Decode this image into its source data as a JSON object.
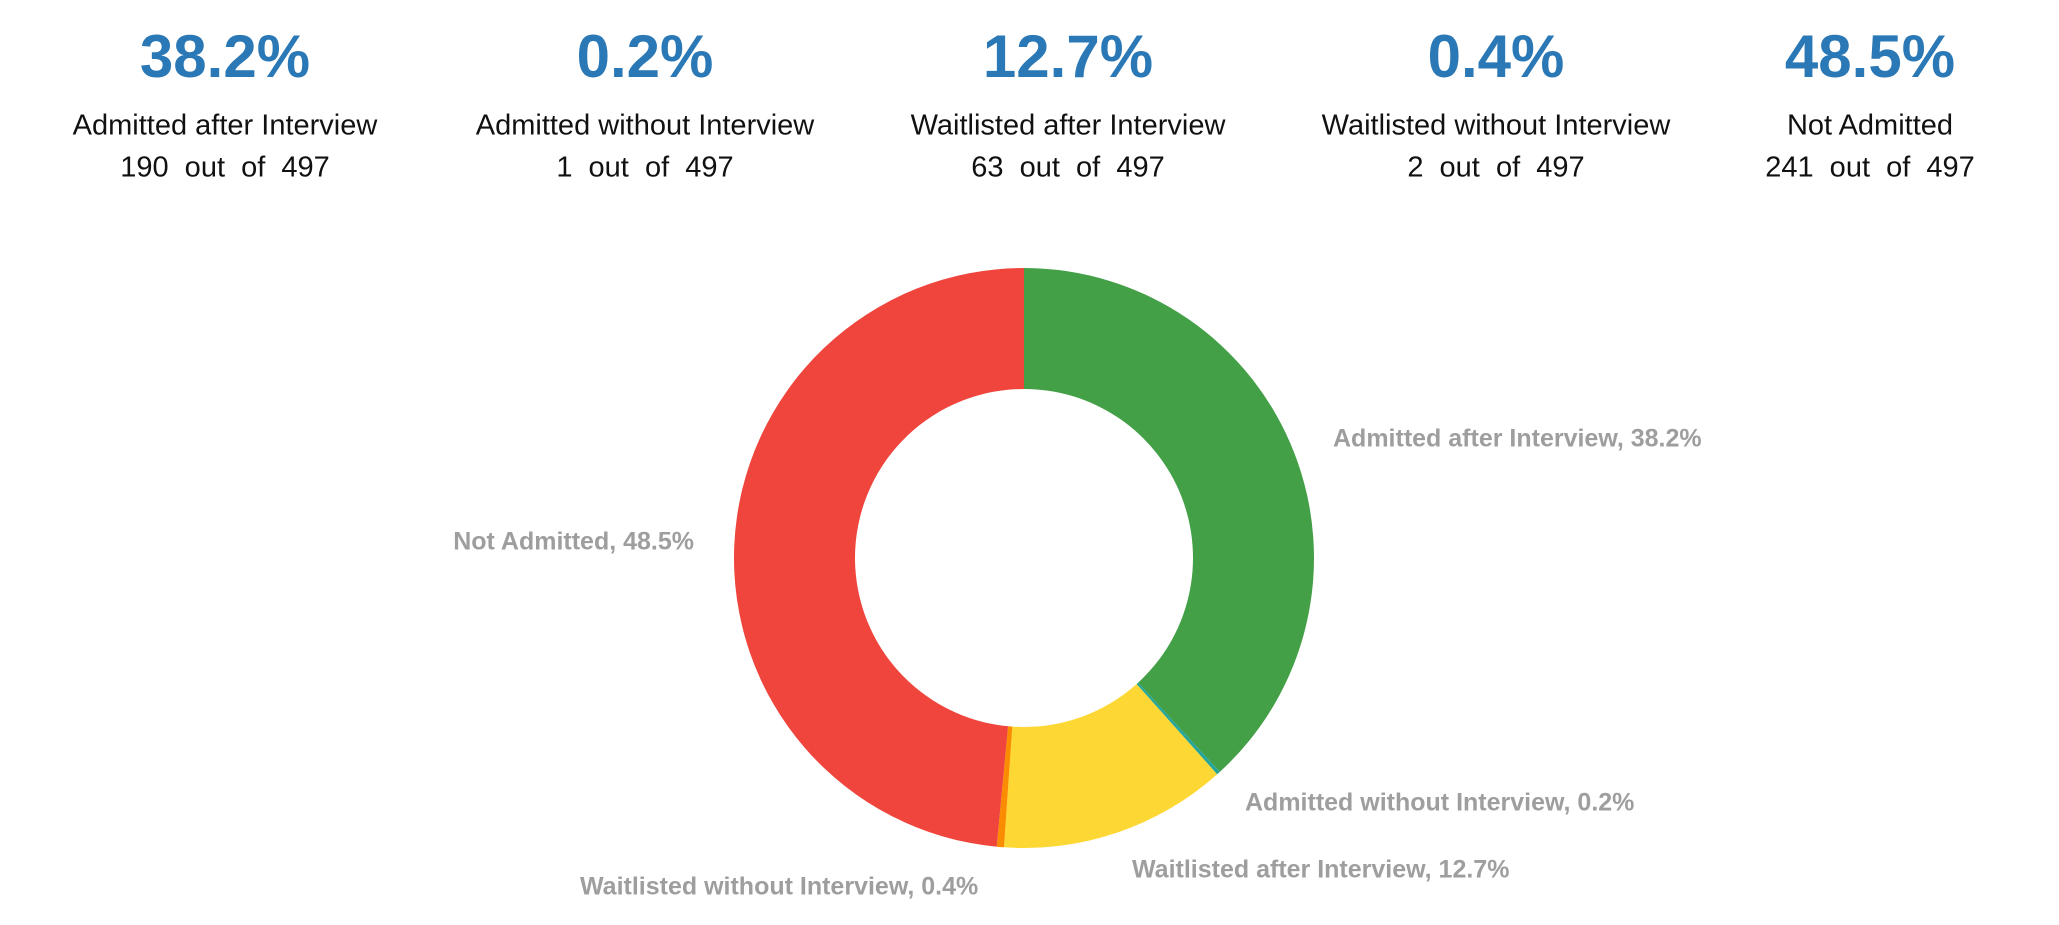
{
  "stats": [
    {
      "percent": "38.2%",
      "label": "Admitted after Interview",
      "count": "190  out  of  497"
    },
    {
      "percent": "0.2%",
      "label": "Admitted without Interview",
      "count": "1  out  of  497"
    },
    {
      "percent": "12.7%",
      "label": "Waitlisted after Interview",
      "count": "63  out  of  497"
    },
    {
      "percent": "0.4%",
      "label": "Waitlisted without Interview",
      "count": "2  out  of  497"
    },
    {
      "percent": "48.5%",
      "label": "Not Admitted",
      "count": "241  out  of  497"
    }
  ],
  "chart_data": {
    "type": "donut",
    "categories": [
      "Admitted after Interview",
      "Admitted without Interview",
      "Waitlisted after Interview",
      "Waitlisted without Interview",
      "Not Admitted"
    ],
    "values": [
      38.2,
      0.2,
      12.7,
      0.4,
      48.5
    ],
    "value_labels": [
      "Admitted after Interview, 38.2%",
      "Admitted without Interview, 0.2%",
      "Waitlisted after Interview, 12.7%",
      "Waitlisted without Interview, 0.4%",
      "Not Admitted, 48.5%"
    ],
    "colors": [
      "#43a047",
      "#26a69a",
      "#fdd835",
      "#fb8c00",
      "#ef453d"
    ]
  }
}
